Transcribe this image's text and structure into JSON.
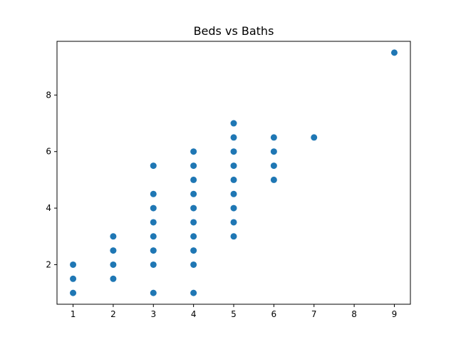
{
  "chart_data": {
    "type": "scatter",
    "title": "Beds vs Baths",
    "xlabel": "",
    "ylabel": "",
    "xlim": [
      0.6,
      9.4
    ],
    "ylim": [
      0.6,
      9.9
    ],
    "xticks": [
      1,
      2,
      3,
      4,
      5,
      6,
      7,
      8,
      9
    ],
    "yticks": [
      2,
      4,
      6,
      8
    ],
    "grid": false,
    "marker_color": "#1f77b4",
    "series": [
      {
        "points": [
          [
            1,
            1
          ],
          [
            1,
            1.5
          ],
          [
            1,
            2
          ],
          [
            2,
            1.5
          ],
          [
            2,
            2
          ],
          [
            2,
            2.5
          ],
          [
            2,
            3
          ],
          [
            3,
            1
          ],
          [
            3,
            2
          ],
          [
            3,
            2.5
          ],
          [
            3,
            3
          ],
          [
            3,
            3.5
          ],
          [
            3,
            4
          ],
          [
            3,
            4.5
          ],
          [
            3,
            5.5
          ],
          [
            4,
            1
          ],
          [
            4,
            2
          ],
          [
            4,
            2.5
          ],
          [
            4,
            3
          ],
          [
            4,
            3.5
          ],
          [
            4,
            4
          ],
          [
            4,
            4.5
          ],
          [
            4,
            5
          ],
          [
            4,
            5.5
          ],
          [
            4,
            6
          ],
          [
            5,
            3
          ],
          [
            5,
            3.5
          ],
          [
            5,
            4
          ],
          [
            5,
            4.5
          ],
          [
            5,
            5
          ],
          [
            5,
            5.5
          ],
          [
            5,
            6
          ],
          [
            5,
            6.5
          ],
          [
            5,
            7
          ],
          [
            6,
            5
          ],
          [
            6,
            5.5
          ],
          [
            6,
            6
          ],
          [
            6,
            6.5
          ],
          [
            7,
            6.5
          ],
          [
            9,
            9.5
          ]
        ]
      }
    ]
  }
}
